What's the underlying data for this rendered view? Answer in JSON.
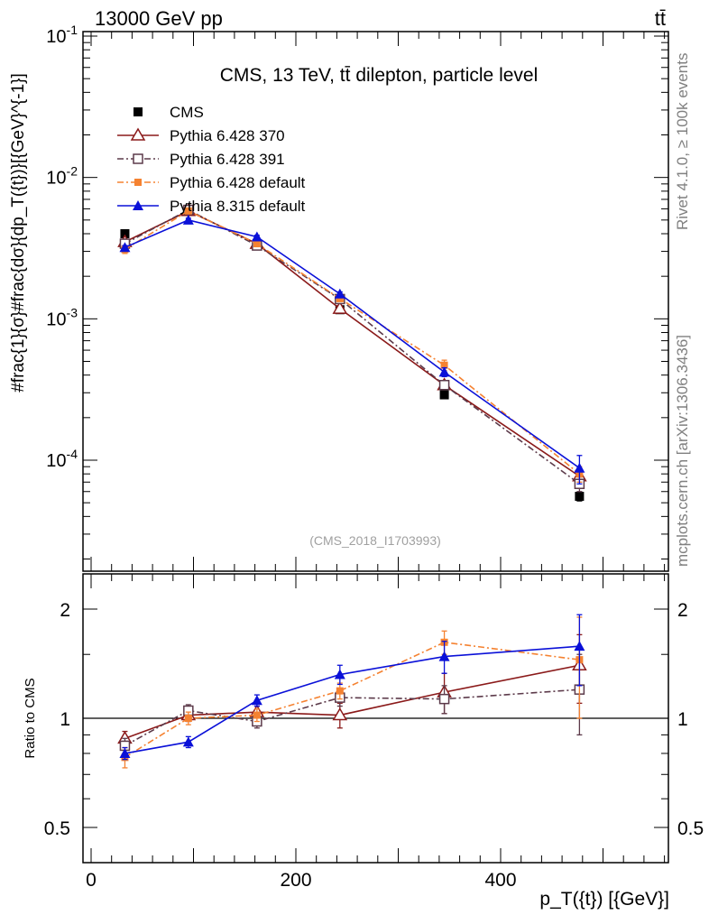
{
  "header": {
    "left": "13000 GeV pp",
    "right": "tt̄"
  },
  "side_labels": {
    "rivet": "Rivet 4.1.0, ≥ 100k events",
    "mcplots": "mcplots.cern.ch [arXiv:1306.3436]"
  },
  "colors": {
    "cms": "#000000",
    "py6_370": "#8b1a1a",
    "py6_391": "#5c3a4a",
    "py6_default": "#f58231",
    "py8_default": "#0a10d8"
  },
  "chart_data": [
    {
      "type": "line",
      "panel": "main",
      "title": "CMS, 13 TeV, tt̄ dilepton, particle level",
      "watermark": "(CMS_2018_I1703993)",
      "ylabel": "#frac{1}{σ}#frac{dσ}{dp_T({t})}[{GeV}^{-1}]",
      "yscale": "log",
      "ylim": [
        2e-05,
        0.1
      ],
      "xlim": [
        -10,
        560
      ],
      "ytick_labels": [
        "10^{-1}",
        "10^{-2}",
        "10^{-3}",
        "10^{-4}"
      ],
      "ytick_values": [
        0.1,
        0.01,
        0.001,
        0.0001
      ],
      "x": [
        33,
        95,
        162,
        243,
        345,
        477
      ],
      "series": [
        {
          "name": "CMS",
          "marker": "square-filled",
          "values": [
            0.004,
            0.0058,
            0.0034,
            0.00116,
            0.00029,
            5.55e-05
          ],
          "errors": [
            0.0002,
            0.0003,
            0.00018,
            6e-05,
            1.7e-05,
            4e-06
          ]
        },
        {
          "name": "Pythia 6.428 370",
          "marker": "triangle-open",
          "line": "solid",
          "values": [
            0.0035,
            0.0058,
            0.0034,
            0.00118,
            0.00034,
            7.7e-05
          ],
          "errors": [
            0.0001,
            0.00015,
            0.0001,
            4e-05,
            2e-05,
            8e-06
          ]
        },
        {
          "name": "Pythia 6.428 391",
          "marker": "square-open",
          "line": "dashdot",
          "values": [
            0.0034,
            0.0059,
            0.0033,
            0.00138,
            0.00034,
            6.8e-05
          ],
          "errors": [
            0.0001,
            0.00015,
            0.0001,
            5e-05,
            2e-05,
            8e-06
          ]
        },
        {
          "name": "Pythia 6.428 default",
          "marker": "square-filled-small",
          "line": "dashdot",
          "values": [
            0.0031,
            0.0058,
            0.0034,
            0.00139,
            0.00047,
            8e-05
          ],
          "errors": [
            0.0002,
            0.0002,
            0.0001,
            5e-05,
            4e-05,
            1e-05
          ]
        },
        {
          "name": "Pythia 8.315 default",
          "marker": "triangle-filled",
          "line": "solid",
          "values": [
            0.0032,
            0.005,
            0.0038,
            0.0015,
            0.00042,
            8.8e-05
          ],
          "errors": [
            0.0001,
            0.00015,
            0.0001,
            5e-05,
            3e-05,
            2e-05
          ]
        }
      ]
    },
    {
      "type": "line",
      "panel": "ratio",
      "ylabel": "Ratio to CMS",
      "xlabel": "p_T({t}) [{GeV}]",
      "yscale": "log",
      "ylim": [
        0.43,
        2.35
      ],
      "xlim": [
        -10,
        560
      ],
      "ytick_labels": [
        "2",
        "1",
        "0.5"
      ],
      "ytick_values": [
        2,
        1,
        0.5
      ],
      "xtick_labels": [
        "0",
        "200",
        "400"
      ],
      "xtick_values": [
        0,
        200,
        400
      ],
      "x": [
        33,
        95,
        162,
        243,
        345,
        477
      ],
      "series": [
        {
          "name": "Pythia 6.428 370",
          "values": [
            0.88,
            1.02,
            1.04,
            1.02,
            1.18,
            1.4
          ],
          "errors": [
            0.04,
            0.04,
            0.04,
            0.08,
            0.15,
            0.3
          ]
        },
        {
          "name": "Pythia 6.428 391",
          "values": [
            0.84,
            1.05,
            0.98,
            1.14,
            1.13,
            1.2
          ],
          "errors": [
            0.04,
            0.04,
            0.04,
            0.06,
            0.1,
            0.3
          ]
        },
        {
          "name": "Pythia 6.428 default",
          "values": [
            0.78,
            1.0,
            1.02,
            1.19,
            1.62,
            1.45
          ],
          "errors": [
            0.05,
            0.04,
            0.04,
            0.06,
            0.12,
            0.45
          ]
        },
        {
          "name": "Pythia 8.315 default",
          "values": [
            0.8,
            0.86,
            1.12,
            1.32,
            1.48,
            1.58
          ],
          "errors": [
            0.03,
            0.03,
            0.04,
            0.08,
            0.15,
            0.35
          ]
        }
      ]
    }
  ]
}
